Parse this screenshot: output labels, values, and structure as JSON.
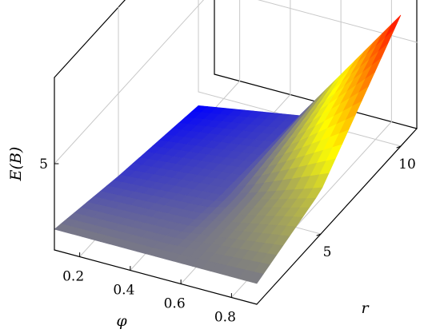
{
  "chart_data": {
    "type": "surface3d",
    "title": "",
    "xlabel": "φ",
    "ylabel": "r",
    "zlabel": "E(B)",
    "xlim": [
      0.1,
      0.9
    ],
    "ylim": [
      1,
      11
    ],
    "zlim": [
      0,
      10
    ],
    "x_ticks": [
      "0.2",
      "0.4",
      "0.6",
      "0.8"
    ],
    "y_ticks": [
      "5",
      "10"
    ],
    "z_ticks": [
      "5"
    ],
    "grid": true,
    "x": [
      0.1,
      0.5,
      0.9
    ],
    "y": [
      1,
      5,
      10
    ],
    "z": [
      [
        1.2,
        1.2,
        1.2
      ],
      [
        0.2,
        0.6,
        2.5
      ],
      [
        -0.8,
        0.2,
        7.6
      ]
    ],
    "colormap": [
      "#0000ff",
      "#ffff00",
      "#ff0000"
    ]
  }
}
